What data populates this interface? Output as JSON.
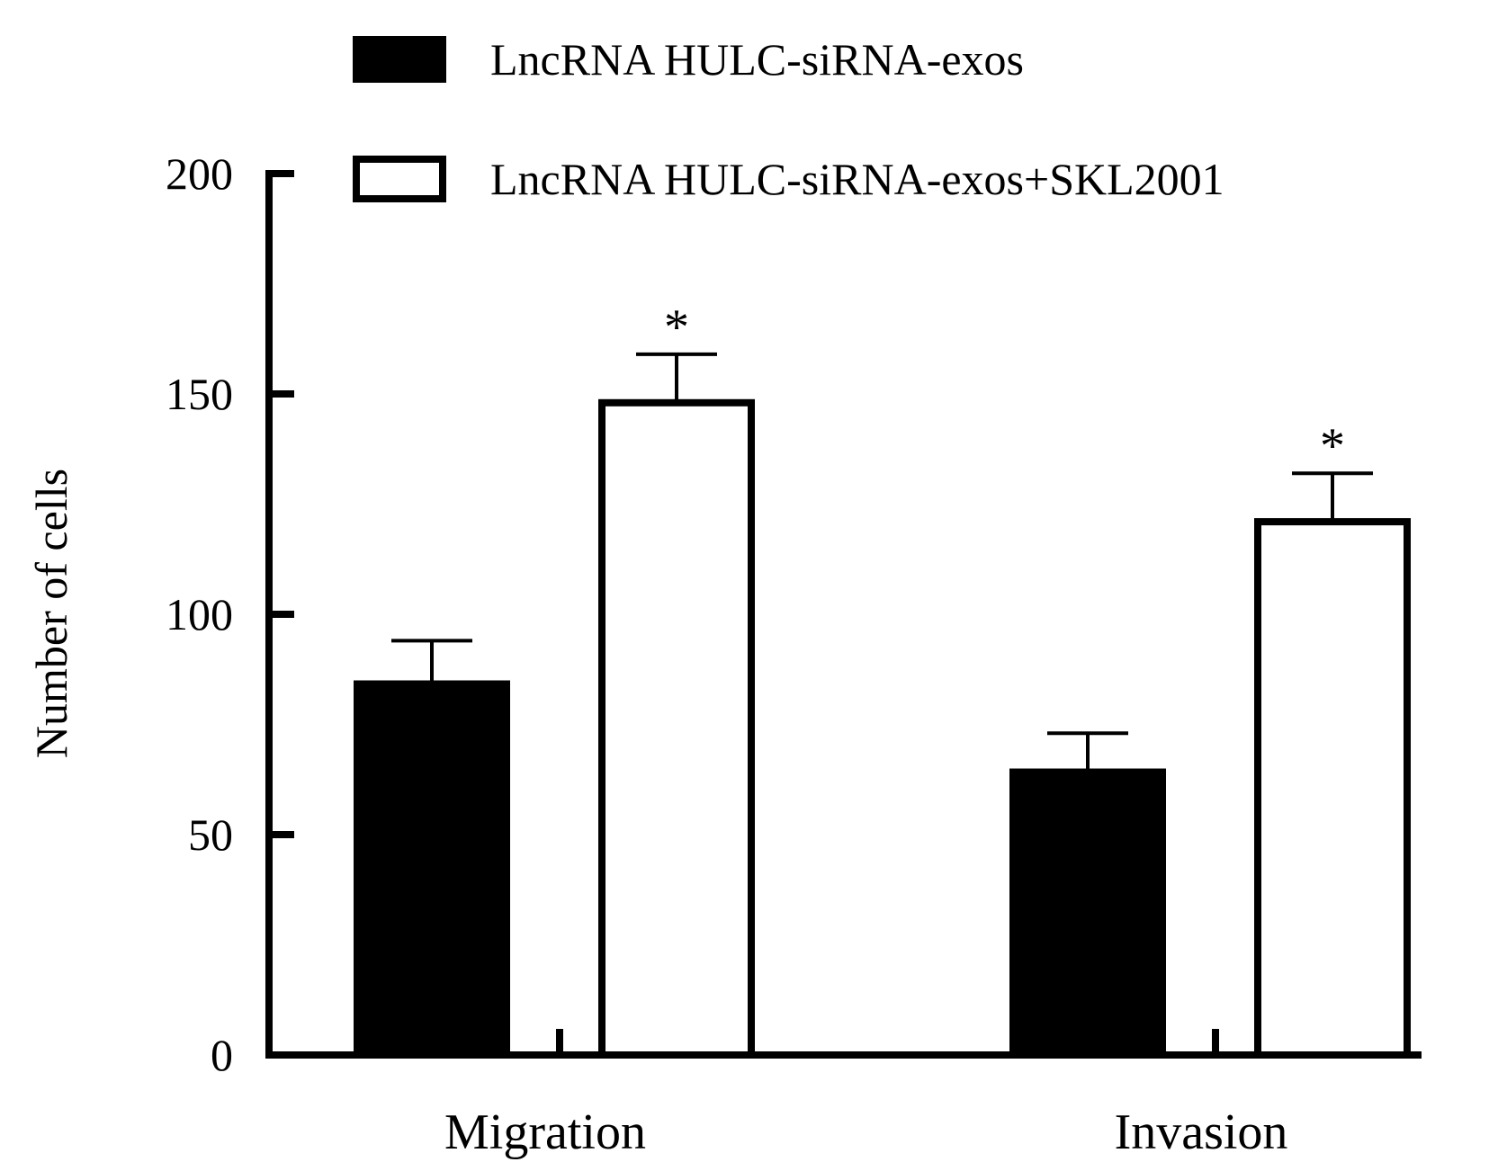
{
  "chart_data": {
    "type": "bar",
    "title": "",
    "xlabel": "",
    "ylabel": "Number of cells",
    "ylim": [
      0,
      200
    ],
    "yticks": [
      "0",
      "50",
      "100",
      "150",
      "200"
    ],
    "categories": [
      "Migration",
      "Invasion"
    ],
    "series": [
      {
        "name": "LncRNA HULC-siRNA-exos",
        "values": [
          85,
          65
        ],
        "errors": [
          9,
          8
        ],
        "fill": "#000000",
        "significance": [
          "",
          ""
        ]
      },
      {
        "name": "LncRNA HULC-siRNA-exos+SKL2001",
        "values": [
          148,
          121
        ],
        "errors": [
          11,
          11
        ],
        "fill": "#ffffff",
        "significance": [
          "*",
          "*"
        ]
      }
    ],
    "legend_position": "top",
    "grid": false
  }
}
